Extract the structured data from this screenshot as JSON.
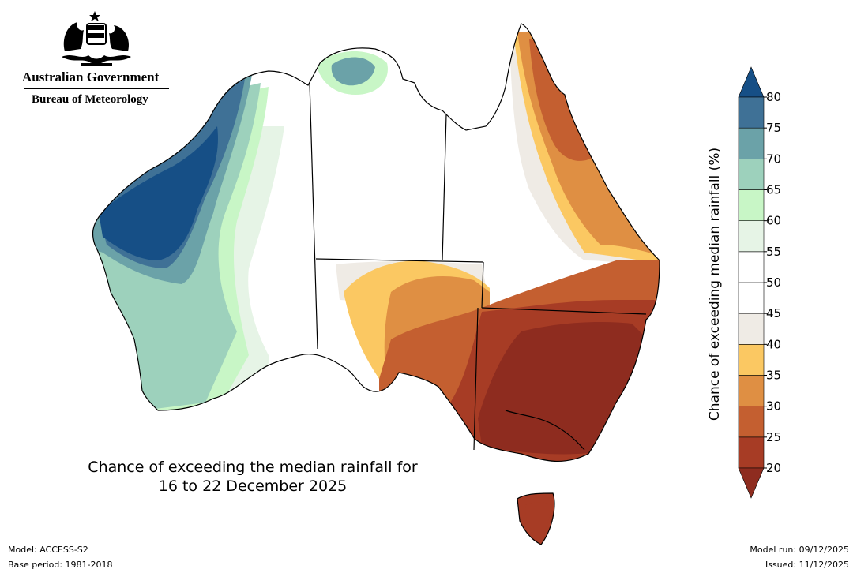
{
  "header": {
    "government": "Australian Government",
    "agency": "Bureau of Meteorology"
  },
  "map": {
    "caption_line1": "Chance of exceeding the median rainfall for",
    "caption_line2": "16 to 22 December 2025",
    "colors": {
      "land_outline": "#000000",
      "state_border": "#000000"
    }
  },
  "legend": {
    "title": "Chance of exceeding median rainfall (%)",
    "ticks": [
      "20",
      "25",
      "30",
      "35",
      "40",
      "45",
      "50",
      "55",
      "60",
      "65",
      "70",
      "75",
      "80"
    ],
    "bins": [
      {
        "range": "<20",
        "color": "#8e2c1f"
      },
      {
        "range": "20-25",
        "color": "#a73c25"
      },
      {
        "range": "25-30",
        "color": "#c45f30"
      },
      {
        "range": "30-35",
        "color": "#df8f43"
      },
      {
        "range": "35-40",
        "color": "#fbc862"
      },
      {
        "range": "40-45",
        "color": "#efebe5"
      },
      {
        "range": "45-50",
        "color": "#ffffff"
      },
      {
        "range": "50-55",
        "color": "#ffffff"
      },
      {
        "range": "55-60",
        "color": "#e6f4e6"
      },
      {
        "range": "60-65",
        "color": "#c8f6c6"
      },
      {
        "range": "65-70",
        "color": "#9dd1bc"
      },
      {
        "range": "70-75",
        "color": "#6ba2a8"
      },
      {
        "range": "75-80",
        "color": "#3f7196"
      },
      {
        "range": ">80",
        "color": "#164f86"
      }
    ]
  },
  "footer": {
    "model": "Model: ACCESS-S2",
    "base_period": "Base period: 1981-2018",
    "model_run": "Model run: 09/12/2025",
    "issued": "Issued: 11/12/2025"
  }
}
